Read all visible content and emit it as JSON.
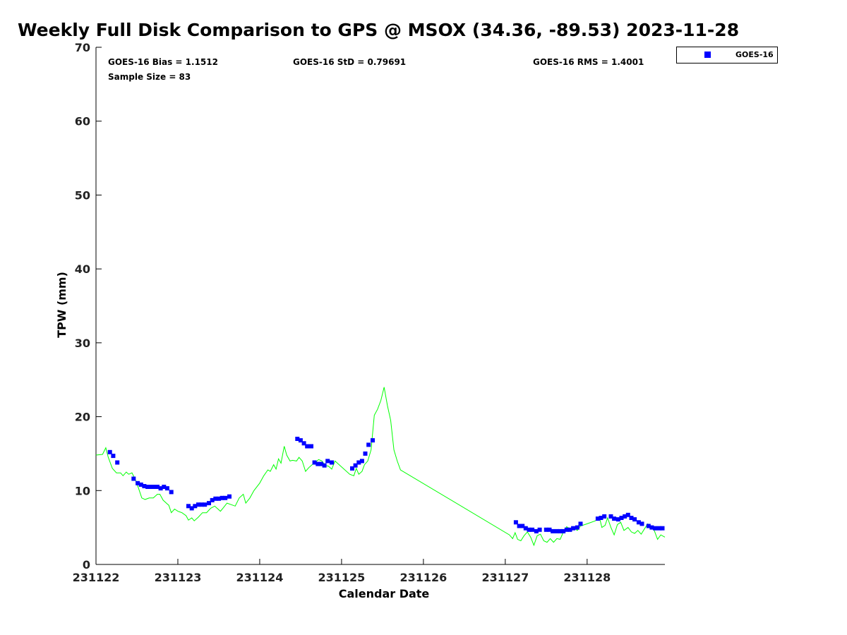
{
  "chart_data": {
    "type": "scatter",
    "title": "Weekly Full Disk Comparison to GPS @ MSOX (34.36, -89.53) 2023-11-28",
    "xlabel": "Calendar Date",
    "ylabel": "TPW (mm)",
    "xlim": [
      0,
      6.95
    ],
    "ylim": [
      0,
      70
    ],
    "x_ticks": [
      0,
      1,
      2,
      3,
      4,
      5,
      6
    ],
    "x_tick_labels": [
      "231122",
      "231123",
      "231124",
      "231125",
      "231126",
      "231127",
      "231128"
    ],
    "y_ticks": [
      0,
      10,
      20,
      30,
      40,
      50,
      60,
      70
    ],
    "y_tick_labels": [
      "0",
      "10",
      "20",
      "30",
      "40",
      "50",
      "60",
      "70"
    ],
    "grid": false,
    "legend": {
      "position": "top-right",
      "entries": [
        "GOES-16"
      ]
    },
    "stats": {
      "bias": "GOES-16 Bias = 1.1512",
      "std": "GOES-16 StD = 0.79691",
      "rms": "GOES-16 RMS = 1.4001",
      "sample": "Sample Size = 83"
    },
    "series": [
      {
        "name": "GOES-16",
        "kind": "scatter",
        "color": "#0000ff",
        "points": [
          [
            0.17,
            15.2
          ],
          [
            0.21,
            14.7
          ],
          [
            0.26,
            13.8
          ],
          [
            0.46,
            11.6
          ],
          [
            0.51,
            11.0
          ],
          [
            0.55,
            10.8
          ],
          [
            0.59,
            10.6
          ],
          [
            0.63,
            10.5
          ],
          [
            0.67,
            10.5
          ],
          [
            0.71,
            10.5
          ],
          [
            0.75,
            10.5
          ],
          [
            0.79,
            10.3
          ],
          [
            0.83,
            10.5
          ],
          [
            0.87,
            10.3
          ],
          [
            0.92,
            9.8
          ],
          [
            1.13,
            7.9
          ],
          [
            1.17,
            7.6
          ],
          [
            1.21,
            7.9
          ],
          [
            1.25,
            8.1
          ],
          [
            1.29,
            8.1
          ],
          [
            1.33,
            8.1
          ],
          [
            1.38,
            8.3
          ],
          [
            1.42,
            8.7
          ],
          [
            1.46,
            8.9
          ],
          [
            1.5,
            8.9
          ],
          [
            1.54,
            9.0
          ],
          [
            1.58,
            9.0
          ],
          [
            1.63,
            9.2
          ],
          [
            2.46,
            17.0
          ],
          [
            2.5,
            16.8
          ],
          [
            2.54,
            16.4
          ],
          [
            2.58,
            16.0
          ],
          [
            2.63,
            16.0
          ],
          [
            2.67,
            13.8
          ],
          [
            2.71,
            13.6
          ],
          [
            2.75,
            13.6
          ],
          [
            2.79,
            13.4
          ],
          [
            2.83,
            14.0
          ],
          [
            2.88,
            13.8
          ],
          [
            3.13,
            13.0
          ],
          [
            3.17,
            13.4
          ],
          [
            3.21,
            13.8
          ],
          [
            3.25,
            14.0
          ],
          [
            3.29,
            15.0
          ],
          [
            3.33,
            16.2
          ],
          [
            3.38,
            16.8
          ],
          [
            5.13,
            5.7
          ],
          [
            5.17,
            5.2
          ],
          [
            5.21,
            5.2
          ],
          [
            5.25,
            4.9
          ],
          [
            5.29,
            4.7
          ],
          [
            5.33,
            4.7
          ],
          [
            5.38,
            4.5
          ],
          [
            5.42,
            4.7
          ],
          [
            5.5,
            4.7
          ],
          [
            5.54,
            4.7
          ],
          [
            5.58,
            4.5
          ],
          [
            5.63,
            4.5
          ],
          [
            5.67,
            4.5
          ],
          [
            5.71,
            4.5
          ],
          [
            5.75,
            4.7
          ],
          [
            5.79,
            4.7
          ],
          [
            5.83,
            4.9
          ],
          [
            5.88,
            5.0
          ],
          [
            5.92,
            5.5
          ],
          [
            6.13,
            6.2
          ],
          [
            6.17,
            6.3
          ],
          [
            6.21,
            6.5
          ],
          [
            6.29,
            6.5
          ],
          [
            6.33,
            6.2
          ],
          [
            6.38,
            6.1
          ],
          [
            6.42,
            6.3
          ],
          [
            6.46,
            6.5
          ],
          [
            6.5,
            6.7
          ],
          [
            6.54,
            6.3
          ],
          [
            6.58,
            6.1
          ],
          [
            6.63,
            5.7
          ],
          [
            6.67,
            5.5
          ],
          [
            6.75,
            5.2
          ],
          [
            6.79,
            5.0
          ],
          [
            6.83,
            4.9
          ],
          [
            6.88,
            4.9
          ],
          [
            6.92,
            4.9
          ]
        ]
      },
      {
        "name": "",
        "kind": "line",
        "color": "#00ff00",
        "points": [
          [
            0.0,
            14.8
          ],
          [
            0.08,
            14.9
          ],
          [
            0.12,
            15.8
          ],
          [
            0.15,
            14.5
          ],
          [
            0.2,
            13.0
          ],
          [
            0.25,
            12.4
          ],
          [
            0.3,
            12.4
          ],
          [
            0.33,
            12.0
          ],
          [
            0.37,
            12.5
          ],
          [
            0.4,
            12.2
          ],
          [
            0.44,
            12.4
          ],
          [
            0.48,
            11.5
          ],
          [
            0.52,
            10.3
          ],
          [
            0.56,
            9.0
          ],
          [
            0.6,
            8.8
          ],
          [
            0.65,
            9.0
          ],
          [
            0.7,
            9.0
          ],
          [
            0.75,
            9.5
          ],
          [
            0.78,
            9.5
          ],
          [
            0.82,
            8.7
          ],
          [
            0.86,
            8.3
          ],
          [
            0.89,
            8.0
          ],
          [
            0.92,
            7.0
          ],
          [
            0.96,
            7.5
          ],
          [
            1.0,
            7.2
          ],
          [
            1.05,
            7.0
          ],
          [
            1.1,
            6.6
          ],
          [
            1.13,
            6.0
          ],
          [
            1.17,
            6.3
          ],
          [
            1.2,
            5.9
          ],
          [
            1.25,
            6.4
          ],
          [
            1.3,
            7.0
          ],
          [
            1.35,
            7.0
          ],
          [
            1.4,
            7.6
          ],
          [
            1.45,
            7.9
          ],
          [
            1.48,
            7.6
          ],
          [
            1.52,
            7.2
          ],
          [
            1.55,
            7.6
          ],
          [
            1.6,
            8.3
          ],
          [
            1.65,
            8.1
          ],
          [
            1.7,
            7.9
          ],
          [
            1.75,
            9.0
          ],
          [
            1.8,
            9.5
          ],
          [
            1.83,
            8.3
          ],
          [
            1.88,
            9.0
          ],
          [
            1.93,
            10.0
          ],
          [
            2.0,
            11.0
          ],
          [
            2.05,
            12.0
          ],
          [
            2.1,
            12.8
          ],
          [
            2.13,
            12.6
          ],
          [
            2.17,
            13.5
          ],
          [
            2.2,
            12.9
          ],
          [
            2.23,
            14.3
          ],
          [
            2.26,
            13.7
          ],
          [
            2.3,
            16.0
          ],
          [
            2.33,
            14.8
          ],
          [
            2.37,
            14.0
          ],
          [
            2.4,
            14.1
          ],
          [
            2.45,
            14.0
          ],
          [
            2.48,
            14.5
          ],
          [
            2.52,
            14.0
          ],
          [
            2.56,
            12.6
          ],
          [
            2.6,
            13.1
          ],
          [
            2.64,
            13.5
          ],
          [
            2.68,
            13.8
          ],
          [
            2.72,
            14.2
          ],
          [
            2.76,
            14.0
          ],
          [
            2.8,
            13.4
          ],
          [
            2.84,
            13.3
          ],
          [
            2.88,
            12.9
          ],
          [
            2.92,
            14.0
          ],
          [
            3.1,
            12.2
          ],
          [
            3.15,
            12.0
          ],
          [
            3.18,
            13.0
          ],
          [
            3.21,
            12.2
          ],
          [
            3.25,
            12.6
          ],
          [
            3.28,
            13.5
          ],
          [
            3.32,
            14.0
          ],
          [
            3.36,
            15.5
          ],
          [
            3.4,
            20.2
          ],
          [
            3.44,
            21.0
          ],
          [
            3.48,
            22.2
          ],
          [
            3.52,
            24.0
          ],
          [
            3.56,
            21.5
          ],
          [
            3.6,
            19.5
          ],
          [
            3.64,
            15.5
          ],
          [
            3.68,
            14.0
          ],
          [
            3.72,
            12.8
          ],
          [
            5.05,
            4.0
          ],
          [
            5.09,
            3.5
          ],
          [
            5.12,
            4.3
          ],
          [
            5.15,
            3.4
          ],
          [
            5.19,
            3.2
          ],
          [
            5.23,
            3.9
          ],
          [
            5.27,
            4.4
          ],
          [
            5.31,
            3.7
          ],
          [
            5.35,
            2.6
          ],
          [
            5.39,
            3.9
          ],
          [
            5.43,
            4.1
          ],
          [
            5.47,
            3.2
          ],
          [
            5.51,
            3.0
          ],
          [
            5.55,
            3.5
          ],
          [
            5.59,
            3.0
          ],
          [
            5.63,
            3.5
          ],
          [
            5.67,
            3.4
          ],
          [
            5.71,
            4.4
          ],
          [
            5.75,
            5.1
          ],
          [
            5.79,
            4.8
          ],
          [
            5.83,
            5.0
          ],
          [
            5.88,
            4.6
          ],
          [
            5.92,
            5.2
          ],
          [
            6.0,
            5.5
          ],
          [
            6.1,
            5.9
          ],
          [
            6.15,
            6.4
          ],
          [
            6.18,
            5.0
          ],
          [
            6.22,
            5.3
          ],
          [
            6.25,
            6.3
          ],
          [
            6.29,
            5.0
          ],
          [
            6.33,
            4.0
          ],
          [
            6.37,
            5.4
          ],
          [
            6.41,
            5.7
          ],
          [
            6.45,
            4.6
          ],
          [
            6.5,
            5.0
          ],
          [
            6.54,
            4.4
          ],
          [
            6.58,
            4.2
          ],
          [
            6.62,
            4.6
          ],
          [
            6.66,
            4.1
          ],
          [
            6.7,
            4.8
          ],
          [
            6.74,
            5.5
          ],
          [
            6.78,
            5.2
          ],
          [
            6.82,
            4.6
          ],
          [
            6.86,
            3.4
          ],
          [
            6.9,
            4.0
          ],
          [
            6.95,
            3.7
          ]
        ]
      }
    ]
  }
}
